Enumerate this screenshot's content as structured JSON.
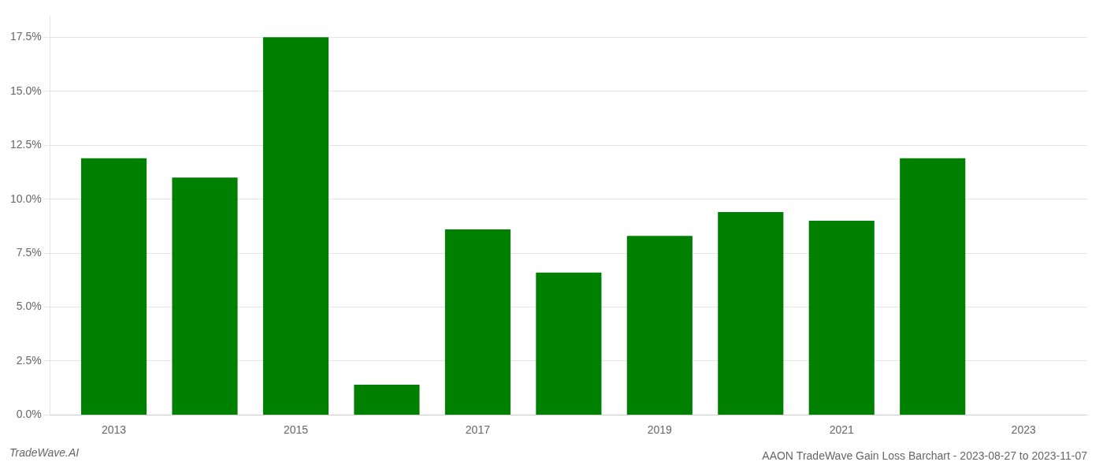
{
  "chart_data": {
    "type": "bar",
    "title": "AAON TradeWave Gain Loss Barchart - 2023-08-27 to 2023-11-07",
    "annotations": [
      "TradeWave.AI"
    ],
    "x": [
      2013,
      2014,
      2015,
      2016,
      2017,
      2018,
      2019,
      2020,
      2021,
      2022,
      2023
    ],
    "values": [
      0.119,
      0.11,
      0.175,
      0.014,
      0.086,
      0.066,
      0.083,
      0.094,
      0.09,
      0.119,
      null
    ],
    "color": "#008000",
    "xlim": [
      2012.3,
      2023.7
    ],
    "xticks": [
      2013,
      2015,
      2017,
      2019,
      2021,
      2023
    ],
    "ylim": [
      0.0,
      0.185
    ],
    "yticks": [
      {
        "value": 0.0,
        "label": "0.0%"
      },
      {
        "value": 0.025,
        "label": "2.5%"
      },
      {
        "value": 0.05,
        "label": "5.0%"
      },
      {
        "value": 0.075,
        "label": "7.5%"
      },
      {
        "value": 0.1,
        "label": "10.0%"
      },
      {
        "value": 0.125,
        "label": "12.5%"
      },
      {
        "value": 0.15,
        "label": "15.0%"
      },
      {
        "value": 0.175,
        "label": "17.5%"
      }
    ],
    "grid": true
  }
}
